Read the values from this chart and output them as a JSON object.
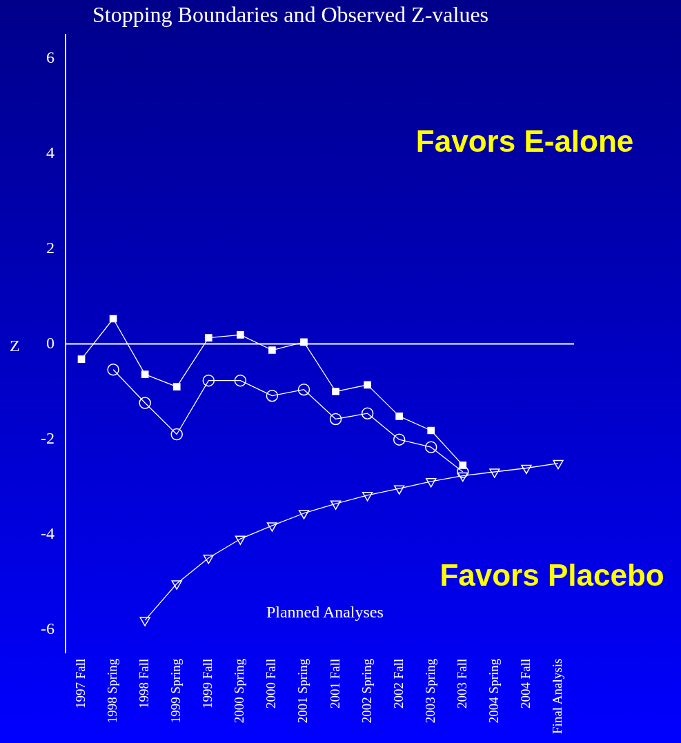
{
  "chart_data": {
    "type": "line",
    "title": "Stopping Boundaries and Observed Z-values",
    "xlabel": "Planned Analyses",
    "ylabel": "Z",
    "categories": [
      "1997 Fall",
      "1998 Spring",
      "1998 Fall",
      "1999 Spring",
      "1999 Fall",
      "2000 Spring",
      "2000 Fall",
      "2001 Spring",
      "2001 Fall",
      "2002 Spring",
      "2002 Fall",
      "2003 Spring",
      "2003 Fall",
      "2004 Spring",
      "2004 Fall",
      "Final Analysis"
    ],
    "series": [
      {
        "color": "#ffffff",
        "marker": "square",
        "values": [
          -0.32,
          0.53,
          -0.64,
          -0.9,
          0.13,
          0.19,
          -0.13,
          0.04,
          -1.0,
          -0.86,
          -1.52,
          -1.82,
          -2.55,
          null,
          null,
          null
        ]
      },
      {
        "color": "#ffffff",
        "marker": "circle",
        "values": [
          null,
          -0.54,
          -1.24,
          -1.9,
          -0.77,
          -0.77,
          -1.09,
          -0.96,
          -1.58,
          -1.46,
          -2.01,
          -2.17,
          -2.69,
          null,
          null,
          null
        ]
      },
      {
        "color": "#ffffff",
        "marker": "triangle",
        "values": [
          null,
          null,
          -5.81,
          -5.04,
          -4.5,
          -4.1,
          -3.82,
          -3.56,
          -3.36,
          -3.18,
          -3.04,
          -2.89,
          -2.77,
          -2.69,
          -2.61,
          -2.51
        ]
      }
    ],
    "ylim": [
      -6.5,
      6.5
    ],
    "yticks": [
      -6,
      -4,
      -2,
      0,
      2,
      4,
      6
    ],
    "grid": false,
    "legend": false,
    "ref_lines": [
      {
        "axis": "y",
        "value": 0,
        "color": "#ffffff"
      }
    ],
    "annotations": [
      "Favors E-alone",
      "Favors Placebo"
    ]
  }
}
